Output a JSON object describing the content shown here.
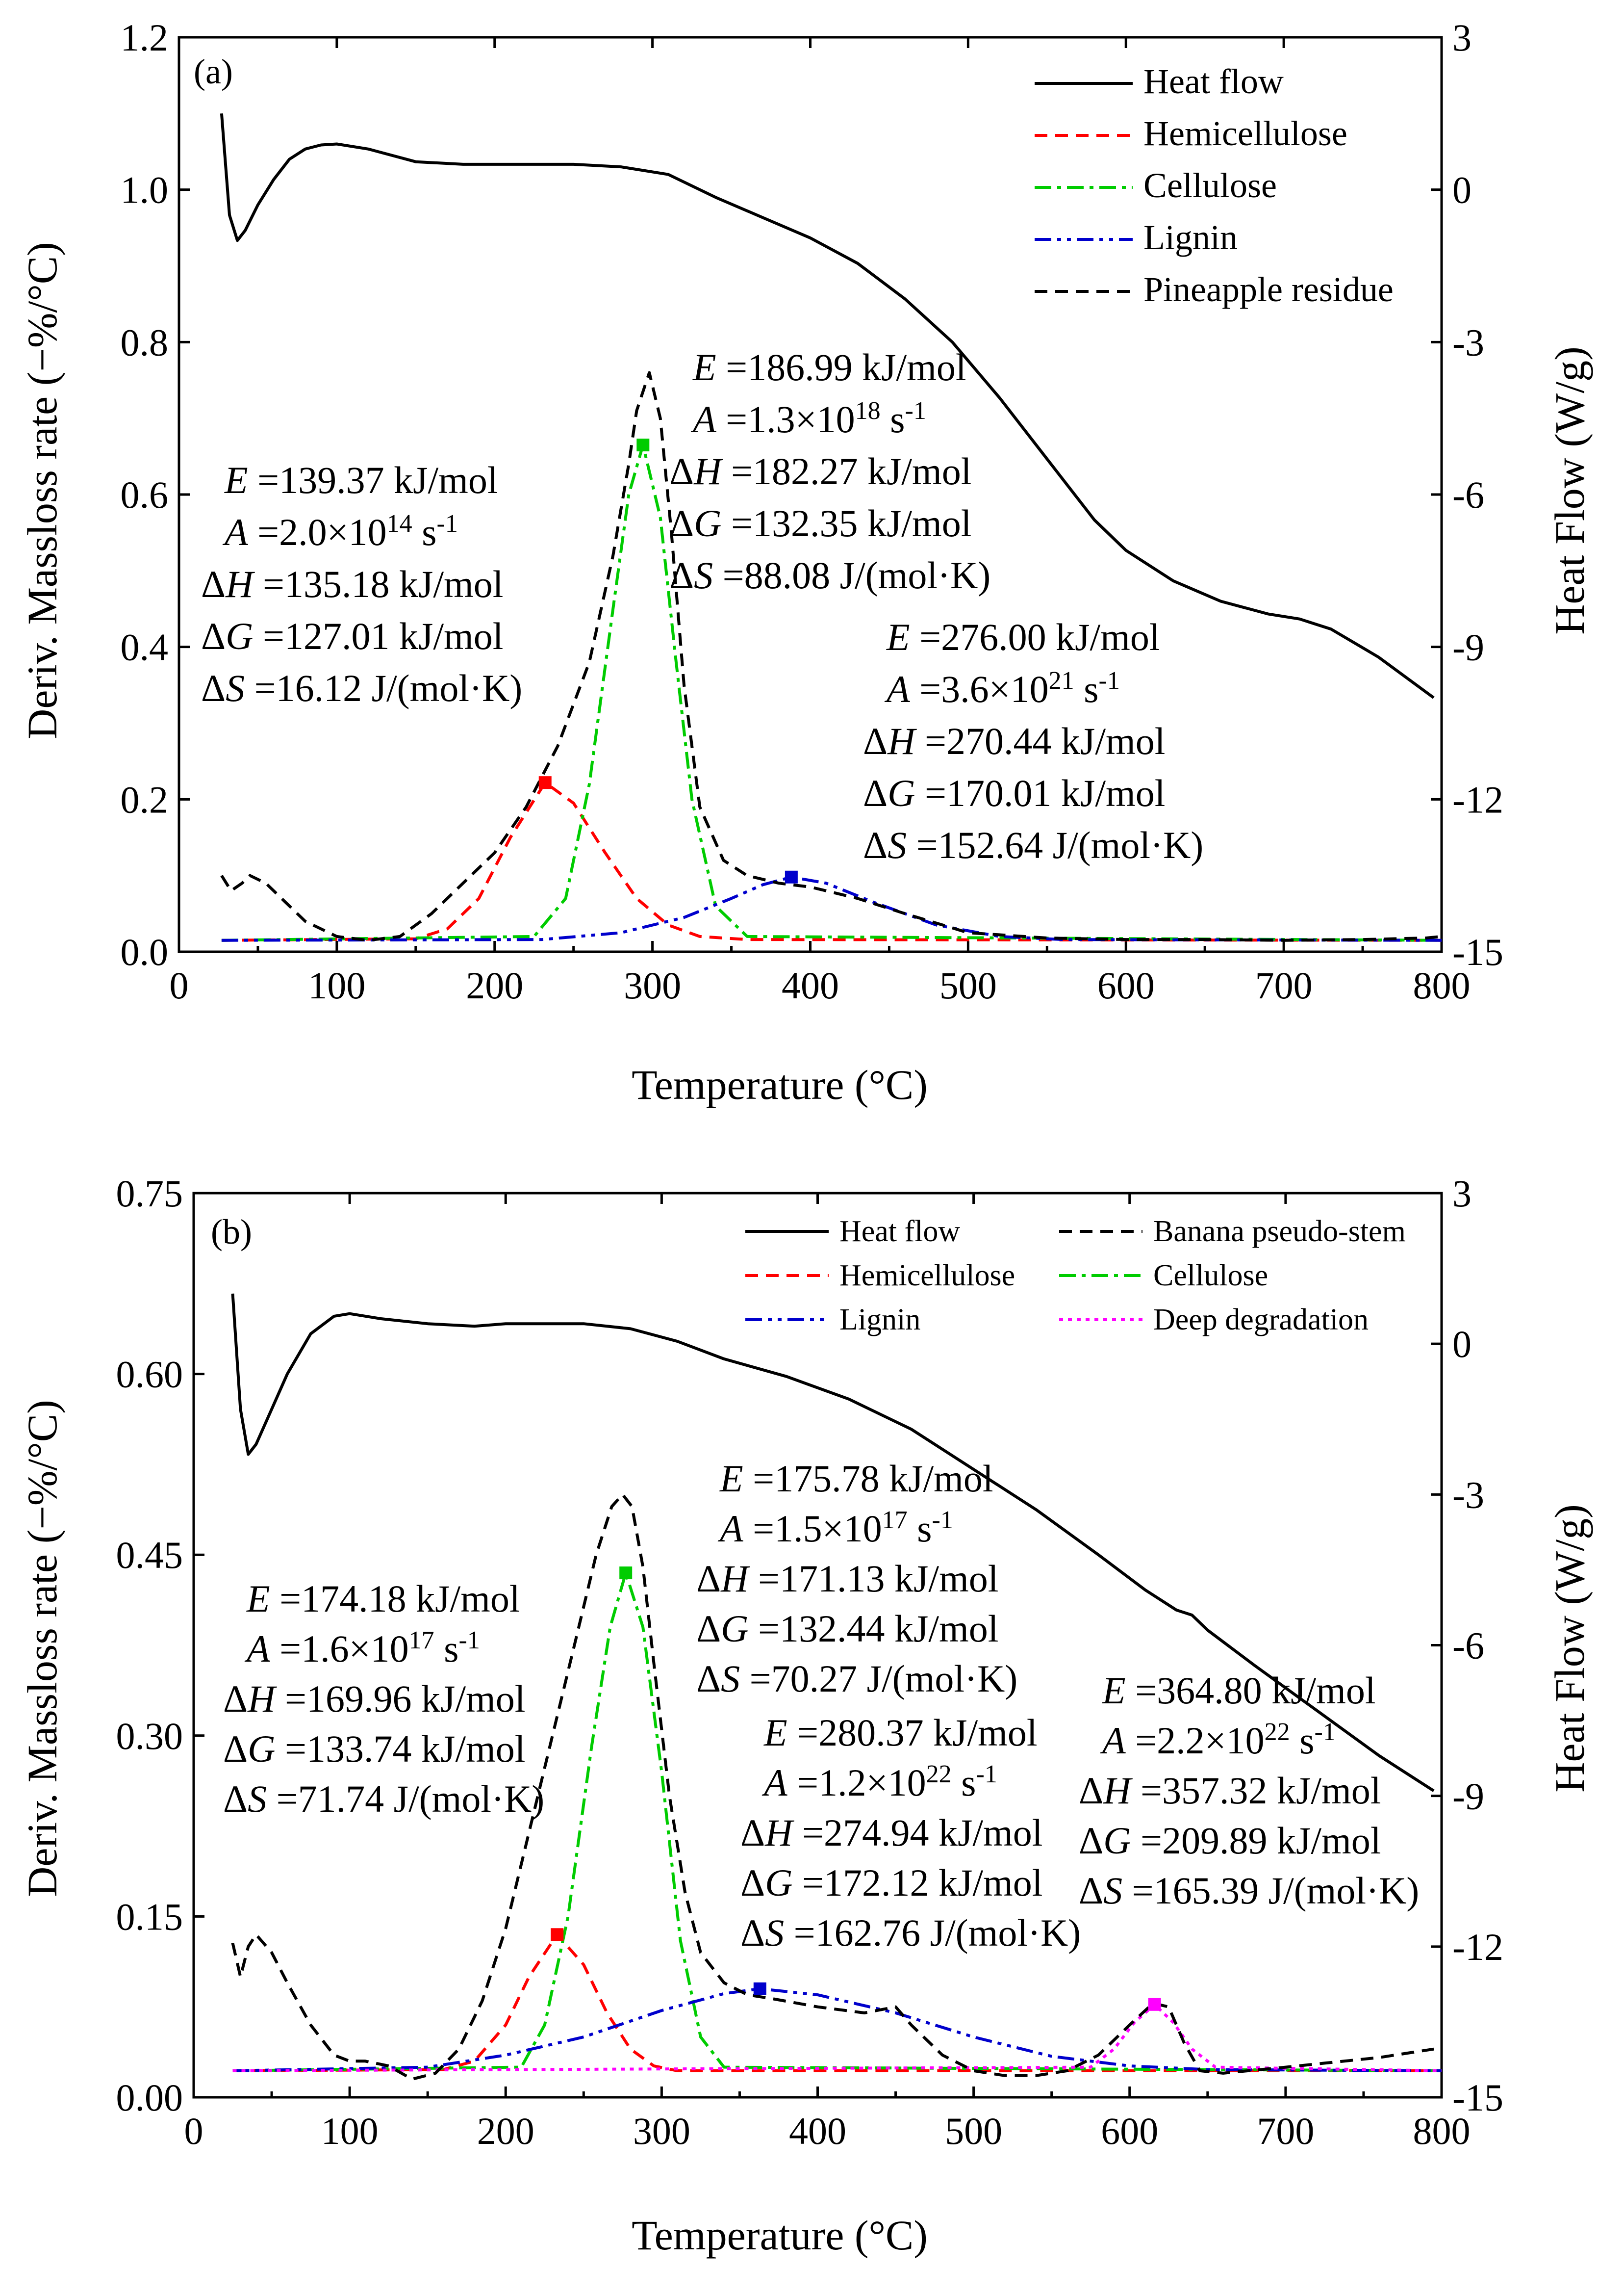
{
  "chart_data": [
    {
      "panel": "(a)",
      "type": "line",
      "xlabel": "Temperature (°C)",
      "ylabel_left": "Deriv. Massloss rate (−%/°C)",
      "ylabel_right": "Heat Flow (W/g)",
      "xlim": [
        0,
        800
      ],
      "ylim_left": [
        0.0,
        1.2
      ],
      "ylim_right": [
        -15,
        3
      ],
      "x_ticks": [
        "0",
        "100",
        "200",
        "300",
        "400",
        "500",
        "600",
        "700",
        "800"
      ],
      "y_ticks_left": [
        "0.0",
        "0.2",
        "0.4",
        "0.6",
        "0.8",
        "1.0",
        "1.2"
      ],
      "y_ticks_right": [
        "-15",
        "-12",
        "-9",
        "-6",
        "-3",
        "0",
        "3"
      ],
      "legend": [
        "Heat flow",
        "Hemicellulose",
        "Cellulose",
        "Lignin",
        "Pineapple residue"
      ],
      "series": [
        {
          "name": "Heat flow",
          "axis": "right",
          "color": "#000000",
          "dash": "solid",
          "x": [
            27,
            32,
            37,
            42,
            50,
            60,
            70,
            80,
            90,
            100,
            120,
            150,
            180,
            200,
            250,
            280,
            310,
            340,
            370,
            400,
            430,
            460,
            490,
            520,
            550,
            580,
            600,
            630,
            660,
            690,
            710,
            730,
            760,
            795
          ],
          "y": [
            1.5,
            -0.5,
            -1.0,
            -0.8,
            -0.3,
            0.2,
            0.6,
            0.8,
            0.88,
            0.9,
            0.8,
            0.55,
            0.5,
            0.5,
            0.5,
            0.45,
            0.3,
            -0.15,
            -0.55,
            -0.95,
            -1.45,
            -2.15,
            -3.0,
            -4.1,
            -5.3,
            -6.5,
            -7.1,
            -7.7,
            -8.1,
            -8.35,
            -8.45,
            -8.65,
            -9.2,
            -10.0
          ]
        },
        {
          "name": "Hemicellulose",
          "axis": "left",
          "color": "#ff0000",
          "dash": "dash",
          "x": [
            27,
            150,
            170,
            190,
            210,
            232,
            250,
            270,
            290,
            310,
            330,
            360,
            800
          ],
          "y": [
            0.015,
            0.017,
            0.03,
            0.07,
            0.15,
            0.222,
            0.195,
            0.13,
            0.07,
            0.035,
            0.02,
            0.016,
            0.015
          ]
        },
        {
          "name": "Cellulose",
          "axis": "left",
          "color": "#00cc00",
          "dash": "dashdot",
          "x": [
            27,
            225,
            245,
            260,
            275,
            285,
            294,
            305,
            315,
            325,
            340,
            360,
            800
          ],
          "y": [
            0.015,
            0.02,
            0.07,
            0.22,
            0.45,
            0.6,
            0.665,
            0.57,
            0.38,
            0.2,
            0.06,
            0.02,
            0.015
          ]
        },
        {
          "name": "Lignin",
          "axis": "left",
          "color": "#0000cc",
          "dash": "dashdotdot",
          "x": [
            27,
            230,
            280,
            320,
            350,
            370,
            388,
            410,
            440,
            480,
            520,
            560,
            800
          ],
          "y": [
            0.015,
            0.016,
            0.025,
            0.045,
            0.07,
            0.088,
            0.098,
            0.09,
            0.065,
            0.035,
            0.02,
            0.016,
            0.015
          ]
        },
        {
          "name": "Pineapple residue",
          "axis": "left",
          "color": "#000000",
          "dash": "dash",
          "x": [
            27,
            33,
            40,
            45,
            55,
            65,
            80,
            100,
            120,
            140,
            160,
            180,
            200,
            220,
            240,
            260,
            275,
            285,
            290,
            298,
            305,
            312,
            320,
            330,
            345,
            360,
            380,
            400,
            430,
            460,
            500,
            550,
            600,
            650,
            700,
            750,
            790,
            800
          ],
          "y": [
            0.1,
            0.08,
            0.09,
            0.1,
            0.09,
            0.07,
            0.04,
            0.02,
            0.015,
            0.02,
            0.05,
            0.09,
            0.13,
            0.19,
            0.27,
            0.38,
            0.52,
            0.64,
            0.71,
            0.76,
            0.7,
            0.55,
            0.35,
            0.19,
            0.12,
            0.1,
            0.09,
            0.085,
            0.07,
            0.05,
            0.025,
            0.018,
            0.016,
            0.016,
            0.015,
            0.016,
            0.018,
            0.02
          ]
        }
      ],
      "peak_markers": [
        {
          "x": 232,
          "y": 0.222,
          "color": "#ff0000"
        },
        {
          "x": 294,
          "y": 0.665,
          "color": "#00cc00"
        },
        {
          "x": 388,
          "y": 0.098,
          "color": "#0000cc"
        }
      ],
      "annotations": [
        {
          "lines": [
            "E =139.37 kJ/mol",
            "A =2.0×10^14 s^-1",
            "ΔH =135.18 kJ/mol",
            "ΔG =127.01 kJ/mol",
            "ΔS =16.12 J/(mol·K)"
          ]
        },
        {
          "lines": [
            "E =186.99 kJ/mol",
            "A =1.3×10^18 s^-1",
            "ΔH =182.27 kJ/mol",
            "ΔG =132.35 kJ/mol",
            "ΔS =88.08 J/(mol·K)"
          ]
        },
        {
          "lines": [
            "E =276.00 kJ/mol",
            "A =3.6×10^21 s^-1",
            "ΔH =270.44 kJ/mol",
            "ΔG =170.01 kJ/mol",
            "ΔS =152.64 J/(mol·K)"
          ]
        }
      ]
    },
    {
      "panel": "(b)",
      "type": "line",
      "xlabel": "Temperature (°C)",
      "ylabel_left": "Deriv. Massloss rate (−%/°C)",
      "ylabel_right": "Heat Flow (W/g)",
      "xlim": [
        0,
        800
      ],
      "ylim_left": [
        0.0,
        0.75
      ],
      "ylim_right": [
        -15,
        3
      ],
      "x_ticks": [
        "0",
        "100",
        "200",
        "300",
        "400",
        "500",
        "600",
        "700",
        "800"
      ],
      "y_ticks_left": [
        "0.00",
        "0.15",
        "0.30",
        "0.45",
        "0.60",
        "0.75"
      ],
      "y_ticks_right": [
        "-15",
        "-12",
        "-9",
        "-6",
        "-3",
        "0",
        "3"
      ],
      "legend": [
        "Heat flow",
        "Banana pseudo-stem",
        "Hemicellulose",
        "Cellulose",
        "Lignin",
        "Deep degradation"
      ],
      "series": [
        {
          "name": "Heat flow",
          "axis": "right",
          "color": "#000000",
          "dash": "solid",
          "x": [
            25,
            30,
            35,
            40,
            50,
            60,
            75,
            90,
            100,
            120,
            150,
            180,
            200,
            250,
            280,
            310,
            340,
            380,
            420,
            460,
            500,
            540,
            580,
            610,
            630,
            640,
            650,
            680,
            720,
            760,
            795
          ],
          "y": [
            1.0,
            -1.3,
            -2.2,
            -2.0,
            -1.3,
            -0.6,
            0.2,
            0.55,
            0.6,
            0.5,
            0.4,
            0.35,
            0.4,
            0.4,
            0.3,
            0.05,
            -0.3,
            -0.65,
            -1.1,
            -1.7,
            -2.5,
            -3.3,
            -4.2,
            -4.9,
            -5.3,
            -5.4,
            -5.7,
            -6.4,
            -7.3,
            -8.2,
            -8.9
          ]
        },
        {
          "name": "Hemicellulose",
          "axis": "left",
          "color": "#ff0000",
          "dash": "dash",
          "x": [
            25,
            160,
            180,
            200,
            215,
            233,
            250,
            265,
            280,
            295,
            310,
            800
          ],
          "y": [
            0.022,
            0.023,
            0.03,
            0.06,
            0.1,
            0.135,
            0.11,
            0.07,
            0.04,
            0.026,
            0.022,
            0.022
          ]
        },
        {
          "name": "Cellulose",
          "axis": "left",
          "color": "#00cc00",
          "dash": "dashdot",
          "x": [
            25,
            210,
            225,
            240,
            255,
            267,
            277,
            288,
            300,
            312,
            325,
            340,
            800
          ],
          "y": [
            0.022,
            0.025,
            0.06,
            0.15,
            0.29,
            0.39,
            0.435,
            0.39,
            0.27,
            0.13,
            0.05,
            0.025,
            0.022
          ]
        },
        {
          "name": "Lignin",
          "axis": "left",
          "color": "#0000cc",
          "dash": "dashdotdot",
          "x": [
            25,
            150,
            200,
            250,
            300,
            340,
            363,
            400,
            450,
            500,
            550,
            600,
            650,
            800
          ],
          "y": [
            0.022,
            0.025,
            0.035,
            0.05,
            0.072,
            0.086,
            0.09,
            0.085,
            0.07,
            0.05,
            0.034,
            0.026,
            0.023,
            0.022
          ]
        },
        {
          "name": "Deep degradation",
          "axis": "left",
          "color": "#ff00ff",
          "dash": "dot",
          "x": [
            25,
            575,
            590,
            603,
            616,
            628,
            640,
            655,
            800
          ],
          "y": [
            0.022,
            0.025,
            0.04,
            0.062,
            0.077,
            0.062,
            0.04,
            0.025,
            0.022
          ]
        },
        {
          "name": "Banana pseudo-stem",
          "axis": "left",
          "color": "#000000",
          "dash": "dash",
          "x": [
            25,
            30,
            35,
            40,
            50,
            60,
            75,
            90,
            100,
            110,
            125,
            140,
            155,
            170,
            185,
            200,
            215,
            230,
            245,
            258,
            268,
            275,
            281,
            288,
            295,
            305,
            315,
            325,
            340,
            355,
            370,
            400,
            430,
            450,
            460,
            480,
            500,
            520,
            540,
            560,
            580,
            600,
            615,
            625,
            635,
            645,
            660,
            700,
            760,
            795
          ],
          "y": [
            0.128,
            0.1,
            0.125,
            0.135,
            0.12,
            0.095,
            0.06,
            0.035,
            0.03,
            0.03,
            0.026,
            0.015,
            0.02,
            0.04,
            0.08,
            0.14,
            0.22,
            0.3,
            0.38,
            0.45,
            0.49,
            0.5,
            0.49,
            0.44,
            0.36,
            0.25,
            0.17,
            0.12,
            0.095,
            0.085,
            0.082,
            0.075,
            0.07,
            0.075,
            0.06,
            0.035,
            0.022,
            0.018,
            0.018,
            0.022,
            0.035,
            0.06,
            0.078,
            0.075,
            0.045,
            0.022,
            0.02,
            0.025,
            0.033,
            0.04
          ]
        }
      ],
      "peak_markers": [
        {
          "x": 233,
          "y": 0.135,
          "color": "#ff0000"
        },
        {
          "x": 277,
          "y": 0.435,
          "color": "#00cc00"
        },
        {
          "x": 363,
          "y": 0.09,
          "color": "#0000cc"
        },
        {
          "x": 616,
          "y": 0.077,
          "color": "#ff00ff"
        }
      ],
      "annotations": [
        {
          "lines": [
            "E =174.18 kJ/mol",
            "A =1.6×10^17 s^-1",
            "ΔH =169.96 kJ/mol",
            "ΔG =133.74 kJ/mol",
            "ΔS =71.74 J/(mol·K)"
          ]
        },
        {
          "lines": [
            "E =175.78 kJ/mol",
            "A =1.5×10^17 s^-1",
            "ΔH =171.13 kJ/mol",
            "ΔG =132.44 kJ/mol",
            "ΔS =70.27 J/(mol·K)"
          ]
        },
        {
          "lines": [
            "E =280.37 kJ/mol",
            "A =1.2×10^22 s^-1",
            "ΔH =274.94 kJ/mol",
            "ΔG =172.12 kJ/mol",
            "ΔS =162.76 J/(mol·K)"
          ]
        },
        {
          "lines": [
            "E =364.80 kJ/mol",
            "A =2.2×10^22 s^-1",
            "ΔH =357.32 kJ/mol",
            "ΔG =209.89 kJ/mol",
            "ΔS =165.39 J/(mol·K)"
          ]
        }
      ]
    }
  ]
}
